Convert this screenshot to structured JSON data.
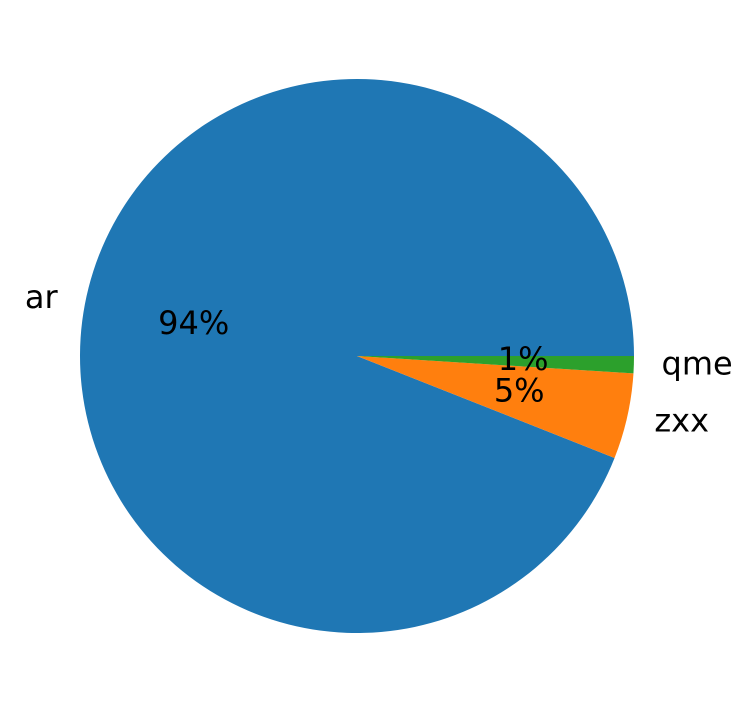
{
  "chart_data": {
    "type": "pie",
    "categories": [
      "ar",
      "zxx",
      "qme"
    ],
    "values": [
      94,
      5,
      1
    ],
    "value_labels": [
      "94%",
      "5%",
      "1%"
    ],
    "colors": [
      "#1f77b4",
      "#ff7f0e",
      "#2ca02c"
    ]
  }
}
